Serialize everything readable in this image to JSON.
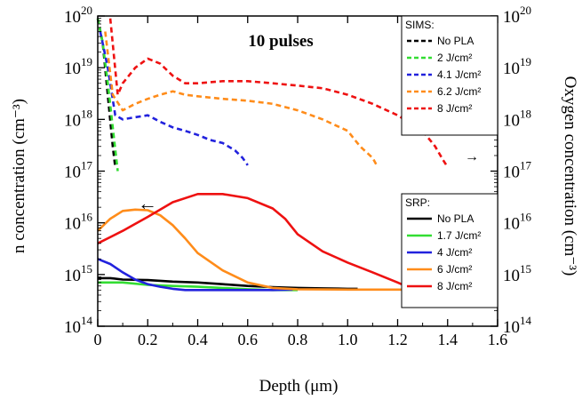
{
  "chart_data": {
    "type": "line",
    "annotation": "10 pulses",
    "xlabel": "Depth (μm)",
    "ylabel_left": "n concentration (cm⁻³)",
    "ylabel_right": "Oxygen concentration (cm⁻³)",
    "xlim": [
      0,
      1.6
    ],
    "ylim": [
      100000000000000.0,
      1e+20
    ],
    "y_scale": "log",
    "grid": false,
    "x_ticks": [
      "0",
      "0.2",
      "0.4",
      "0.6",
      "0.8",
      "1.0",
      "1.2",
      "1.4",
      "1.6"
    ],
    "y_tick_bases": [
      "10",
      "10",
      "10",
      "10",
      "10",
      "10",
      "10"
    ],
    "y_tick_exps": [
      "14",
      "15",
      "16",
      "17",
      "18",
      "19",
      "20"
    ],
    "y_tick_values": [
      100000000000000.0,
      1000000000000000.0,
      1e+16,
      1e+17,
      1e+18,
      1e+19,
      1e+20
    ],
    "arrow_left_label": "←",
    "arrow_right_label": "→",
    "legends": [
      {
        "title": "SIMS:",
        "placement": "top-right",
        "style": "dashed",
        "entries": [
          {
            "label": "No PLA",
            "color": "#000000"
          },
          {
            "label": "2 J/cm²",
            "color": "#33dd33"
          },
          {
            "label": "4.1 J/cm²",
            "color": "#2222dd"
          },
          {
            "label": "6.2 J/cm²",
            "color": "#ff8c1a"
          },
          {
            "label": "8 J/cm²",
            "color": "#ee1111"
          }
        ]
      },
      {
        "title": "SRP:",
        "placement": "middle-right",
        "style": "solid",
        "entries": [
          {
            "label": "No PLA",
            "color": "#000000"
          },
          {
            "label": "1.7 J/cm²",
            "color": "#33dd33"
          },
          {
            "label": "4 J/cm²",
            "color": "#2222dd"
          },
          {
            "label": "6 J/cm²",
            "color": "#ff8c1a"
          },
          {
            "label": "8 J/cm²",
            "color": "#ee1111"
          }
        ]
      }
    ],
    "series": [
      {
        "group": "SIMS",
        "name": "No PLA",
        "color": "#000000",
        "dash": true,
        "x": [
          0.0,
          0.02,
          0.04,
          0.06,
          0.07
        ],
        "y": [
          9e+19,
          3e+19,
          3e+18,
          3e+17,
          1.2e+17
        ]
      },
      {
        "group": "SIMS",
        "name": "2 J/cm²",
        "color": "#33dd33",
        "dash": true,
        "x": [
          0.0,
          0.02,
          0.04,
          0.06,
          0.08
        ],
        "y": [
          9e+19,
          3e+19,
          5e+18,
          7e+17,
          1e+17
        ]
      },
      {
        "group": "SIMS",
        "name": "4.1 J/cm²",
        "color": "#2222dd",
        "dash": true,
        "x": [
          0.01,
          0.04,
          0.07,
          0.1,
          0.15,
          0.2,
          0.25,
          0.3,
          0.35,
          0.4,
          0.45,
          0.5,
          0.55,
          0.58,
          0.6
        ],
        "y": [
          5e+19,
          1e+19,
          1.2e+18,
          1e+18,
          1.1e+18,
          1.2e+18,
          9e+17,
          7e+17,
          6e+17,
          5e+17,
          4e+17,
          3.5e+17,
          2.5e+17,
          1.8e+17,
          1.3e+17
        ]
      },
      {
        "group": "SIMS",
        "name": "6.2 J/cm²",
        "color": "#ff8c1a",
        "dash": true,
        "x": [
          0.03,
          0.06,
          0.1,
          0.15,
          0.2,
          0.25,
          0.3,
          0.35,
          0.4,
          0.5,
          0.6,
          0.7,
          0.8,
          0.9,
          1.0,
          1.05,
          1.1,
          1.12
        ],
        "y": [
          5e+19,
          3e+18,
          1.5e+18,
          2e+18,
          2.5e+18,
          3e+18,
          3.5e+18,
          3e+18,
          2.8e+18,
          2.5e+18,
          2.3e+18,
          2e+18,
          1.5e+18,
          1e+18,
          6e+17,
          3e+17,
          1.8e+17,
          1.2e+17
        ]
      },
      {
        "group": "SIMS",
        "name": "8 J/cm²",
        "color": "#ee1111",
        "dash": true,
        "x": [
          0.05,
          0.08,
          0.1,
          0.15,
          0.2,
          0.25,
          0.3,
          0.35,
          0.4,
          0.5,
          0.6,
          0.7,
          0.8,
          0.9,
          1.0,
          1.1,
          1.2,
          1.3,
          1.35,
          1.38,
          1.4
        ],
        "y": [
          9e+19,
          3e+18,
          5e+18,
          1e+19,
          1.5e+19,
          1.2e+19,
          7e+18,
          5e+18,
          5e+18,
          5.5e+18,
          5.5e+18,
          5e+18,
          4.5e+18,
          4e+18,
          3e+18,
          2e+18,
          1.2e+18,
          6e+17,
          3e+17,
          1.7e+17,
          1.2e+17
        ]
      },
      {
        "group": "SRP",
        "name": "No PLA",
        "color": "#000000",
        "dash": false,
        "x": [
          0.0,
          0.05,
          0.1,
          0.2,
          0.3,
          0.4,
          0.5,
          0.6,
          0.7,
          0.8,
          0.9,
          1.0,
          1.04
        ],
        "y": [
          850000000000000.0,
          850000000000000.0,
          800000000000000.0,
          780000000000000.0,
          730000000000000.0,
          700000000000000.0,
          650000000000000.0,
          600000000000000.0,
          570000000000000.0,
          550000000000000.0,
          540000000000000.0,
          530000000000000.0,
          530000000000000.0
        ]
      },
      {
        "group": "SRP",
        "name": "1.7 J/cm²",
        "color": "#33dd33",
        "dash": false,
        "x": [
          0.0,
          0.1,
          0.2,
          0.3,
          0.4,
          0.5,
          0.6,
          0.7,
          0.8
        ],
        "y": [
          700000000000000.0,
          700000000000000.0,
          630000000000000.0,
          600000000000000.0,
          580000000000000.0,
          550000000000000.0,
          520000000000000.0,
          500000000000000.0,
          500000000000000.0
        ]
      },
      {
        "group": "SRP",
        "name": "4 J/cm²",
        "color": "#2222dd",
        "dash": false,
        "x": [
          0.0,
          0.05,
          0.1,
          0.15,
          0.2,
          0.25,
          0.3,
          0.35,
          0.4,
          0.5,
          0.6,
          0.7,
          0.78
        ],
        "y": [
          2000000000000000.0,
          1600000000000000.0,
          1100000000000000.0,
          800000000000000.0,
          650000000000000.0,
          580000000000000.0,
          530000000000000.0,
          500000000000000.0,
          500000000000000.0,
          500000000000000.0,
          500000000000000.0,
          500000000000000.0,
          510000000000000.0
        ]
      },
      {
        "group": "SRP",
        "name": "6 J/cm²",
        "color": "#ff8c1a",
        "dash": false,
        "x": [
          0.0,
          0.05,
          0.1,
          0.15,
          0.2,
          0.25,
          0.3,
          0.35,
          0.4,
          0.5,
          0.6,
          0.7,
          0.8,
          1.0,
          1.2,
          1.4,
          1.6
        ],
        "y": [
          7000000000000000.0,
          1.2e+16,
          1.7e+16,
          1.8e+16,
          1.75e+16,
          1.4e+16,
          9000000000000000.0,
          5000000000000000.0,
          2600000000000000.0,
          1200000000000000.0,
          700000000000000.0,
          550000000000000.0,
          520000000000000.0,
          510000000000000.0,
          510000000000000.0,
          500000000000000.0,
          500000000000000.0
        ]
      },
      {
        "group": "SRP",
        "name": "8 J/cm²",
        "color": "#ee1111",
        "dash": false,
        "x": [
          0.0,
          0.1,
          0.2,
          0.3,
          0.4,
          0.5,
          0.6,
          0.7,
          0.75,
          0.8,
          0.9,
          1.0,
          1.1,
          1.2,
          1.25,
          1.3,
          1.4,
          1.5,
          1.6
        ],
        "y": [
          4000000000000000.0,
          7000000000000000.0,
          1.3e+16,
          2.5e+16,
          3.6e+16,
          3.6e+16,
          3e+16,
          1.9e+16,
          1.2e+16,
          6000000000000000.0,
          2800000000000000.0,
          1700000000000000.0,
          1100000000000000.0,
          700000000000000.0,
          550000000000000.0,
          500000000000000.0,
          500000000000000.0,
          500000000000000.0,
          500000000000000.0
        ]
      }
    ]
  }
}
